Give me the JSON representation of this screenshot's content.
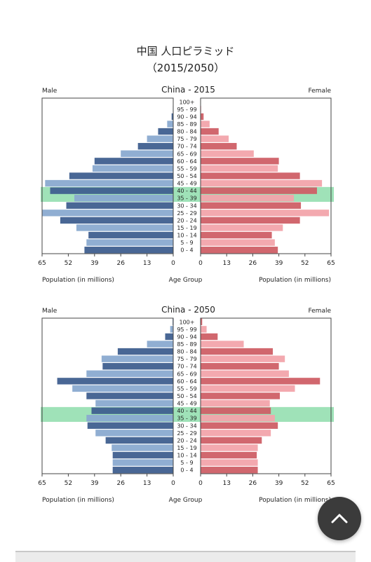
{
  "page": {
    "title": "中国 人口ピラミッド",
    "subtitle": "（2015/2050）"
  },
  "colors": {
    "male_dark": "#3f5f8f",
    "male_light": "#8aaad0",
    "female_dark": "#cf5f66",
    "female_light": "#f2a4ab",
    "highlight": "#7fd8a0"
  },
  "scroll_top_icon": "chevron-up-icon",
  "chart_data": [
    {
      "type": "bar",
      "title": "China - 2015",
      "left_label": "Male",
      "right_label": "Female",
      "xlabel_left": "Population (in millions)",
      "xlabel_center": "Age Group",
      "xlabel_right": "Population (in millions)",
      "xlim": [
        0,
        65
      ],
      "ticks": [
        65,
        52,
        39,
        26,
        13,
        0
      ],
      "highlight": [
        "40 - 44",
        "35 - 39"
      ],
      "categories": [
        "100+",
        "95 - 99",
        "90 - 94",
        "85 - 89",
        "80 - 84",
        "75 - 79",
        "70 - 74",
        "65 - 69",
        "60 - 64",
        "55 - 59",
        "50 - 54",
        "45 - 49",
        "40 - 44",
        "35 - 39",
        "30 - 34",
        "25 - 29",
        "20 - 24",
        "15 - 19",
        "10 - 14",
        "5 - 9",
        "0 - 4"
      ],
      "series": [
        {
          "name": "Male",
          "values": [
            0,
            0.2,
            0.8,
            3,
            7.5,
            13,
            17.5,
            26,
            39,
            40,
            51.5,
            63.5,
            61,
            49,
            53,
            67,
            56,
            48,
            42,
            43,
            44
          ]
        },
        {
          "name": "Female",
          "values": [
            0,
            0.3,
            1.5,
            4.5,
            9,
            14,
            18,
            26.5,
            39,
            38.5,
            49.5,
            60.5,
            58,
            46.5,
            50,
            64,
            49.5,
            41,
            35.5,
            37,
            38.5
          ]
        }
      ]
    },
    {
      "type": "bar",
      "title": "China - 2050",
      "left_label": "Male",
      "right_label": "Female",
      "xlabel_left": "Population (in millions)",
      "xlabel_center": "Age Group",
      "xlabel_right": "Population (in millions)",
      "xlim": [
        0,
        65
      ],
      "ticks": [
        65,
        52,
        39,
        26,
        13,
        0
      ],
      "highlight": [
        "40 - 44",
        "35 - 39"
      ],
      "categories": [
        "100+",
        "95 - 99",
        "90 - 94",
        "85 - 89",
        "80 - 84",
        "75 - 79",
        "70 - 74",
        "65 - 69",
        "60 - 64",
        "55 - 59",
        "50 - 54",
        "45 - 49",
        "40 - 44",
        "35 - 39",
        "30 - 34",
        "25 - 29",
        "20 - 24",
        "15 - 19",
        "10 - 14",
        "5 - 9",
        "0 - 4"
      ],
      "series": [
        {
          "name": "Male",
          "values": [
            0.3,
            1.5,
            4,
            13,
            27.5,
            35.5,
            35,
            43,
            57.5,
            50,
            43,
            38.5,
            40.5,
            43,
            42.5,
            38.5,
            33.5,
            30.5,
            30,
            30,
            30
          ]
        },
        {
          "name": "Female",
          "values": [
            0.8,
            3,
            8.5,
            21.5,
            36,
            42,
            39,
            44,
            59.5,
            47,
            39.5,
            34.5,
            35,
            37,
            38.5,
            35,
            30.5,
            28.5,
            28,
            28.5,
            28.5
          ]
        }
      ]
    }
  ]
}
